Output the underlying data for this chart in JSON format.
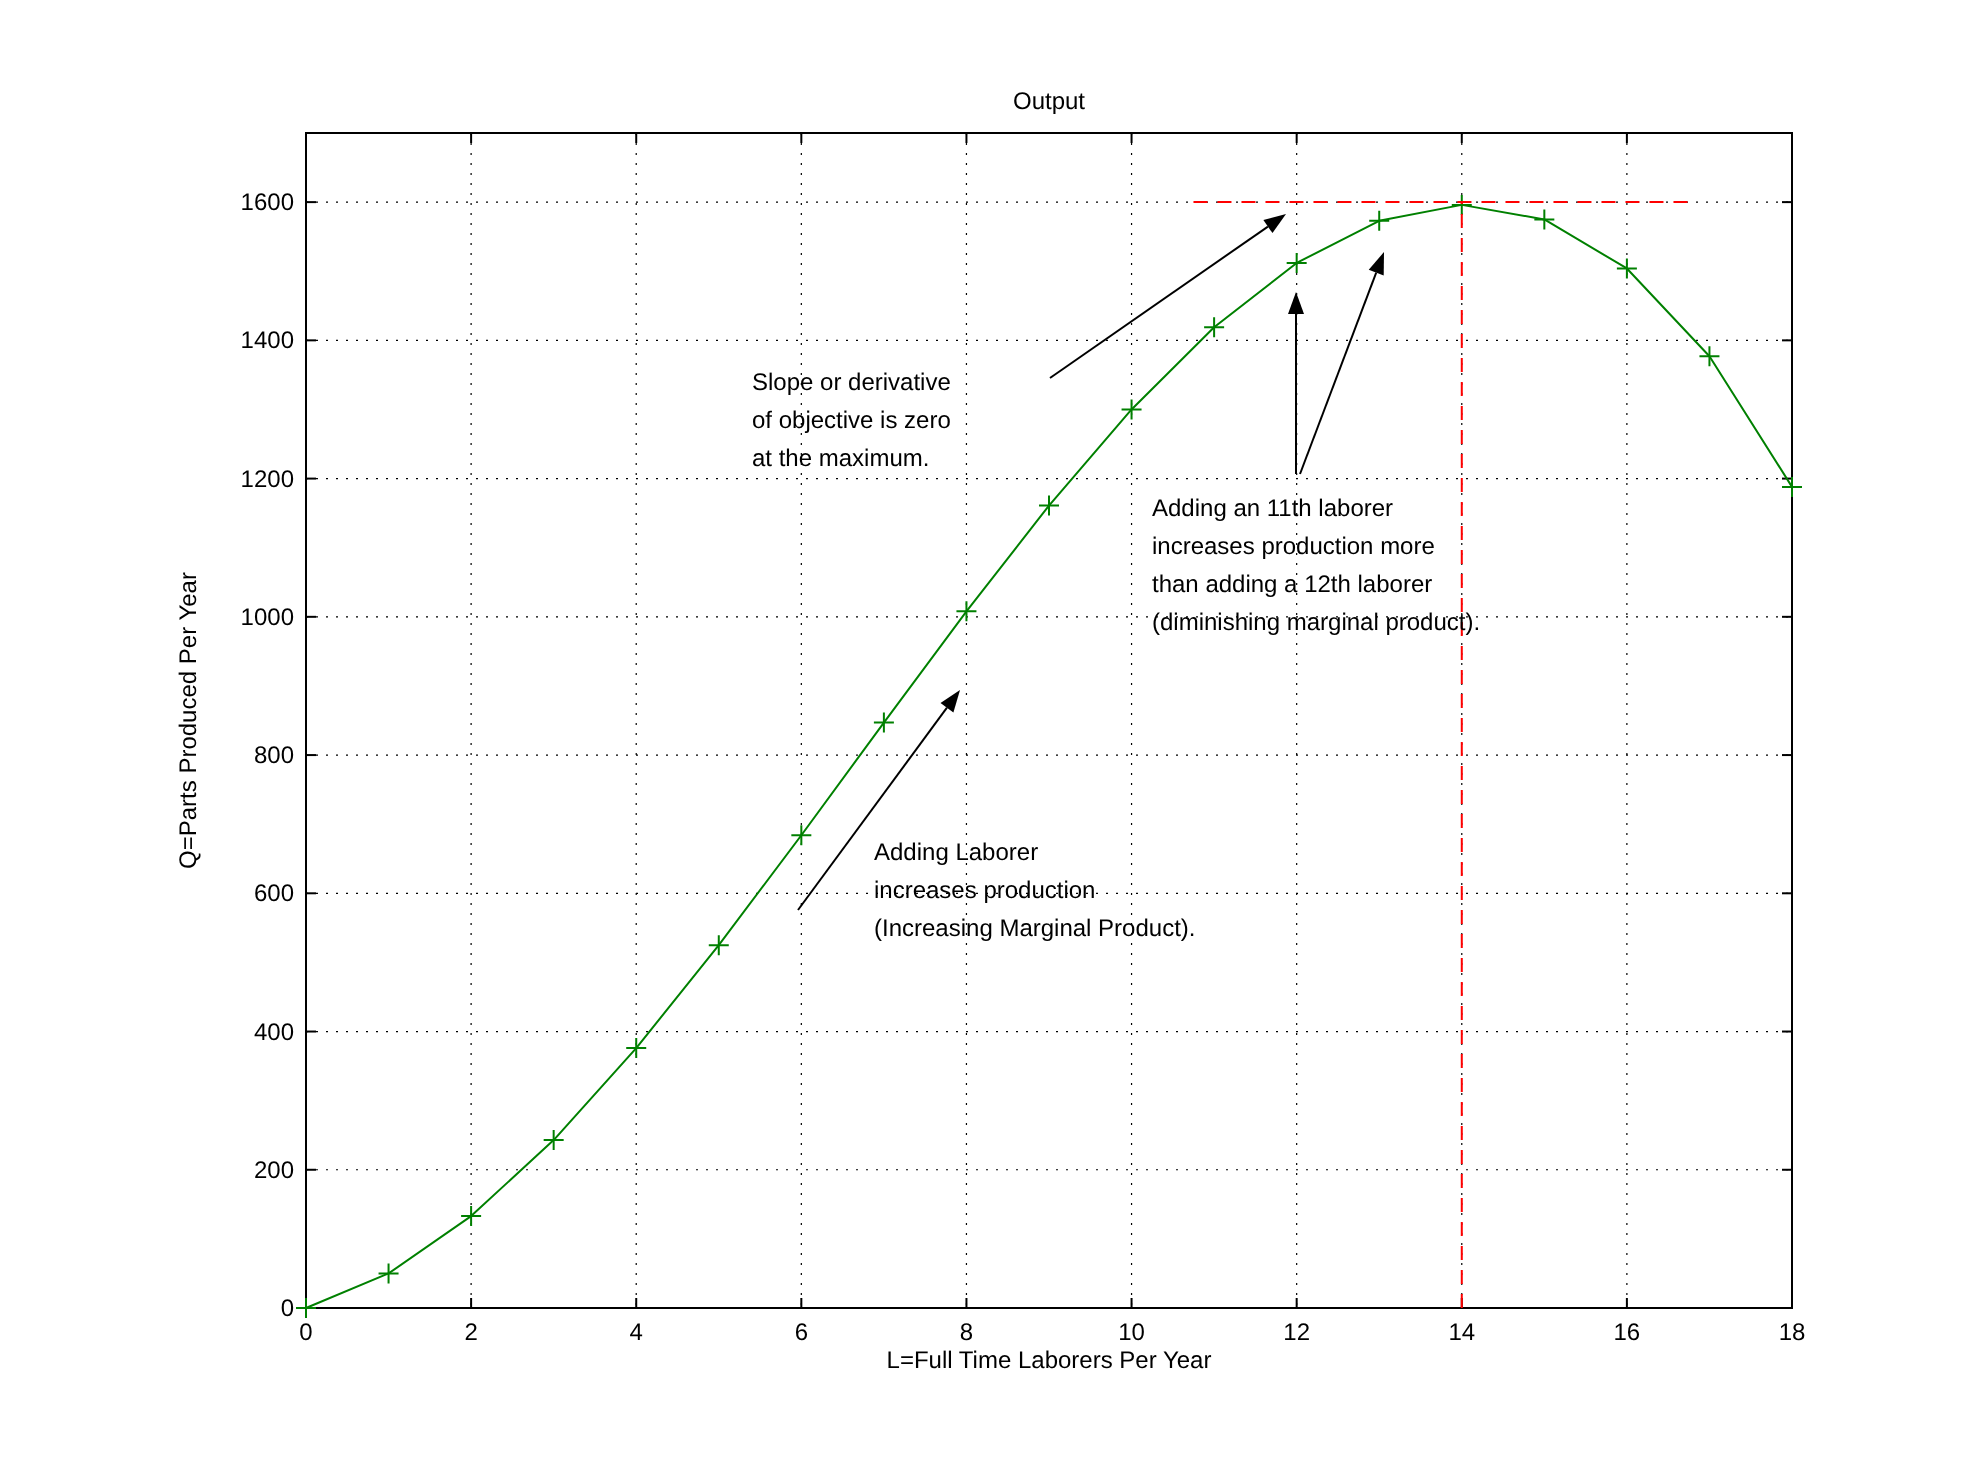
{
  "chart_data": {
    "type": "line",
    "title": "Output",
    "xlabel": "L=Full Time Laborers Per Year",
    "ylabel": "Q=Parts Produced Per Year",
    "x": [
      0,
      1,
      2,
      3,
      4,
      5,
      6,
      7,
      8,
      9,
      10,
      11,
      12,
      13,
      14,
      15,
      16,
      17,
      18
    ],
    "series": [
      {
        "color": "#008000",
        "marker": "cross",
        "line_style": "solid",
        "values": [
          0,
          50,
          133,
          243,
          376,
          525,
          684,
          847,
          1008,
          1161,
          1300,
          1419,
          1512,
          1573,
          1596,
          1575,
          1504,
          1377,
          1188
        ]
      },
      {
        "color": "#ff0000",
        "marker": "none",
        "line_style": "dashed",
        "x": [
          10.75,
          16.75
        ],
        "values": [
          1600,
          1600
        ]
      },
      {
        "color": "#ff0000",
        "marker": "none",
        "line_style": "dashed",
        "x": [
          14,
          14
        ],
        "values": [
          0,
          1600
        ]
      }
    ],
    "xlim": [
      0,
      18
    ],
    "xticks": [
      0,
      2,
      4,
      6,
      8,
      10,
      12,
      14,
      16,
      18
    ],
    "ylim": [
      0,
      1700
    ],
    "yticks": [
      0,
      200,
      400,
      600,
      800,
      1000,
      1200,
      1400,
      1600
    ],
    "grid": true,
    "annotations": [
      "Slope or derivative\nof objective is zero\nat the maximum.",
      "Adding an 11th laborer\nincreases production more\nthan adding a 12th laborer\n(diminishing marginal product).",
      "Adding Laborer\nincreases production\n(Increasing Marginal Product)."
    ]
  }
}
